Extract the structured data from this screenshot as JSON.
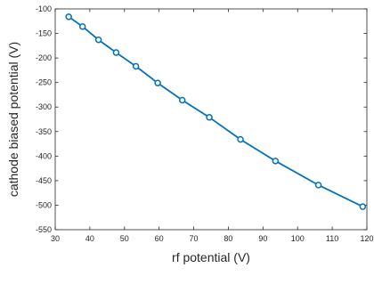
{
  "chart_data": {
    "type": "line",
    "title": "",
    "xlabel": "rf potential (V)",
    "ylabel": "cathode biased potential (V)",
    "xlim": [
      30,
      120
    ],
    "ylim": [
      -550,
      -100
    ],
    "xticks": [
      "30",
      "40",
      "50",
      "60",
      "70",
      "80",
      "90",
      "100",
      "110",
      "120"
    ],
    "yticks": [
      "-100",
      "-150",
      "-200",
      "-250",
      "-300",
      "-350",
      "-400",
      "-450",
      "-500",
      "-550"
    ],
    "grid": false,
    "marker": "circle",
    "colors": {
      "series": "#0072BD",
      "axes": "#262626"
    },
    "series": [
      {
        "x": [
          33.9,
          37.9,
          42.5,
          47.6,
          53.3,
          59.6,
          66.7,
          74.5,
          83.5,
          93.6,
          106.0,
          118.8
        ],
        "y": [
          -116,
          -136,
          -163,
          -189,
          -217,
          -251,
          -286,
          -321,
          -366,
          -410,
          -459,
          -503
        ]
      }
    ]
  }
}
